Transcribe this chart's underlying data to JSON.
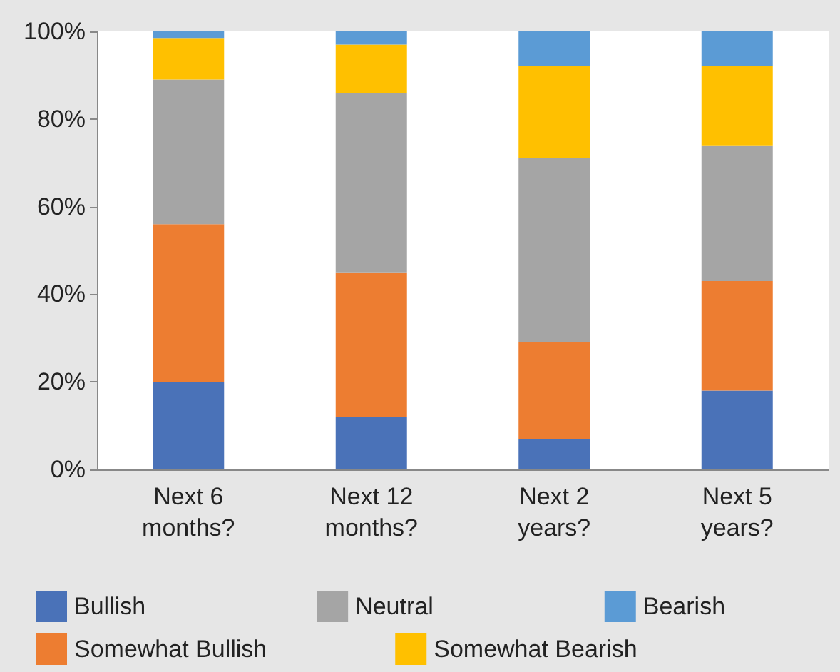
{
  "chart_data": {
    "type": "bar",
    "stacked": true,
    "categories": [
      "Next 6\nmonths?",
      "Next 12\nmonths?",
      "Next 2\nyears?",
      "Next 5\nyears?"
    ],
    "series": [
      {
        "name": "Bullish",
        "color": "#4a72b8",
        "values": [
          20,
          12,
          7,
          18
        ]
      },
      {
        "name": "Somewhat Bullish",
        "color": "#ed7d31",
        "values": [
          36,
          33,
          22,
          25
        ]
      },
      {
        "name": "Neutral",
        "color": "#a5a5a5",
        "values": [
          33,
          41,
          42,
          31
        ]
      },
      {
        "name": "Somewhat Bearish",
        "color": "#ffc000",
        "values": [
          9.5,
          11,
          21,
          18
        ]
      },
      {
        "name": "Bearish",
        "color": "#5b9bd5",
        "values": [
          1.5,
          3,
          8,
          8
        ]
      }
    ],
    "ylim": [
      0,
      100
    ],
    "yticks": [
      {
        "value": 0,
        "label": "0%"
      },
      {
        "value": 20,
        "label": "20%"
      },
      {
        "value": 40,
        "label": "40%"
      },
      {
        "value": 60,
        "label": "60%"
      },
      {
        "value": 80,
        "label": "80%"
      },
      {
        "value": 100,
        "label": "100%"
      }
    ],
    "grid": false,
    "legend": "bottom"
  }
}
